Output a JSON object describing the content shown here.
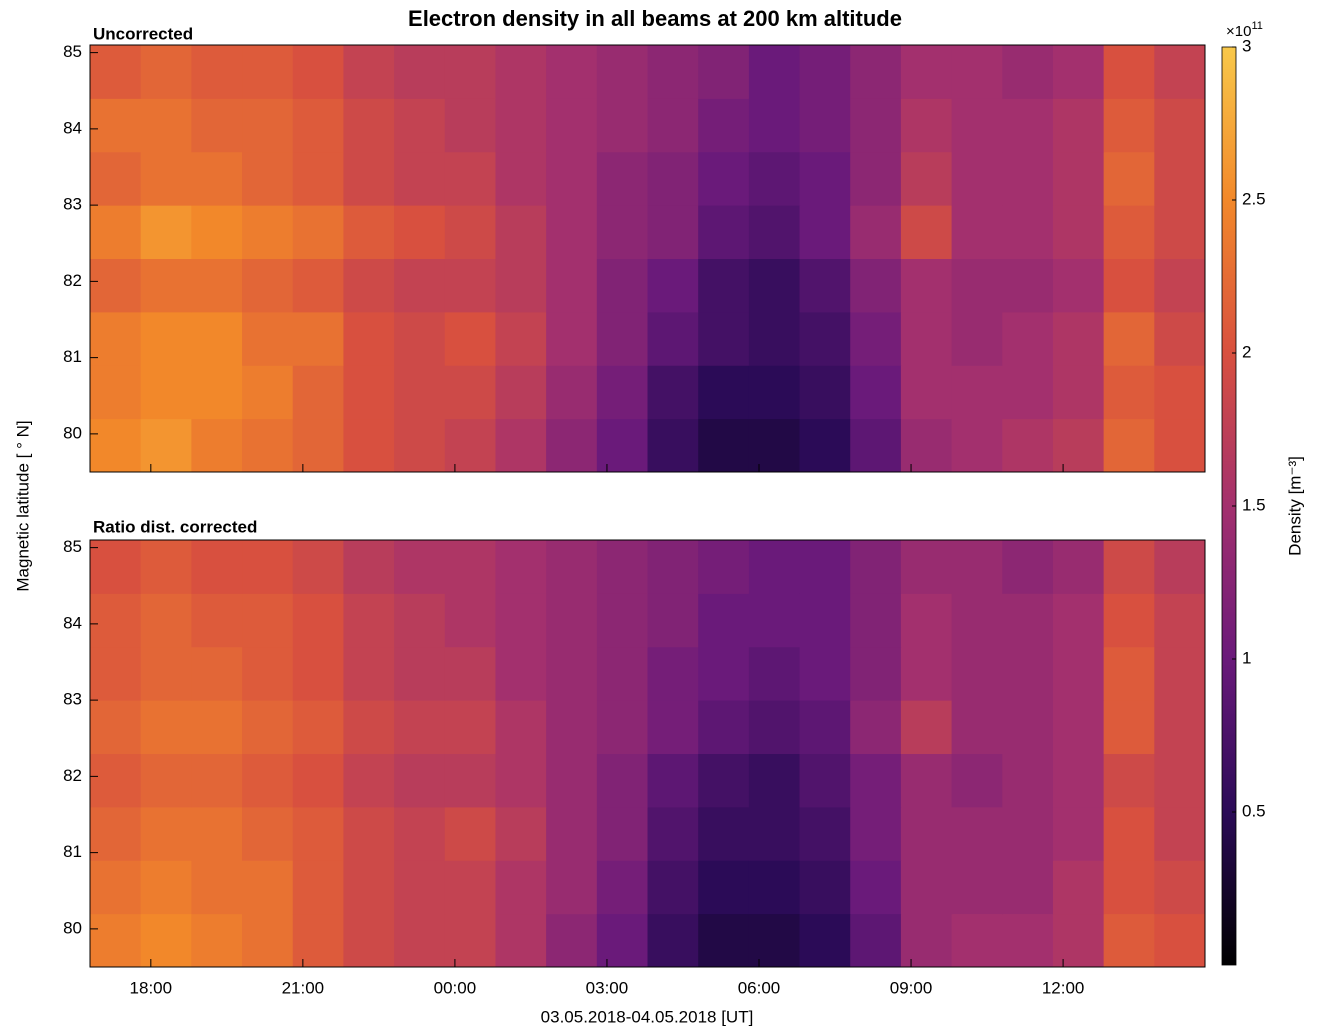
{
  "chart_data": {
    "type": "heatmap",
    "title": "Electron density in all beams at 200 km altitude",
    "y_label": "Magnetic latitude [ ° N]",
    "x_label": "03.05.2018-04.05.2018 [UT]",
    "colorbar_label": "Density [m⁻³]",
    "colorbar_base": "×10",
    "colorbar_exponent": "11",
    "clim": [
      0,
      3
    ],
    "cticks": [
      0.5,
      1,
      1.5,
      2,
      2.5,
      3
    ],
    "colormap": [
      "#000000",
      "#2b0b57",
      "#6a1a7a",
      "#a3306e",
      "#d8503f",
      "#f2882a",
      "#f8c84a"
    ],
    "xlim": [
      16.8,
      38.8
    ],
    "xticks": [
      {
        "value": 18,
        "label": "18:00"
      },
      {
        "value": 21,
        "label": "21:00"
      },
      {
        "value": 24,
        "label": "00:00"
      },
      {
        "value": 27,
        "label": "03:00"
      },
      {
        "value": 30,
        "label": "06:00"
      },
      {
        "value": 33,
        "label": "09:00"
      },
      {
        "value": 36,
        "label": "12:00"
      }
    ],
    "x_edges": [
      16.8,
      17.8,
      18.8,
      19.8,
      20.8,
      21.8,
      22.8,
      23.8,
      24.8,
      25.8,
      26.8,
      27.8,
      28.8,
      29.8,
      30.8,
      31.8,
      32.8,
      33.8,
      34.8,
      35.8,
      36.8,
      37.8,
      38.8
    ],
    "ylim": [
      79.5,
      85.1
    ],
    "yticks": [
      80,
      81,
      82,
      83,
      84,
      85
    ],
    "y_edges": [
      79.5,
      80.2,
      80.9,
      81.6,
      82.3,
      83.0,
      83.7,
      84.4,
      85.1
    ],
    "panels": [
      {
        "subtitle": "Uncorrected",
        "values": [
          [
            2.5,
            2.6,
            2.4,
            2.3,
            2.2,
            2.0,
            1.9,
            1.8,
            1.6,
            1.3,
            1.0,
            0.6,
            0.4,
            0.4,
            0.5,
            0.9,
            1.4,
            1.5,
            1.6,
            1.7,
            2.2,
            2.0
          ],
          [
            2.4,
            2.5,
            2.5,
            2.4,
            2.2,
            2.0,
            1.9,
            1.9,
            1.7,
            1.4,
            1.1,
            0.7,
            0.5,
            0.5,
            0.6,
            1.0,
            1.5,
            1.5,
            1.5,
            1.6,
            2.1,
            2.0
          ],
          [
            2.4,
            2.5,
            2.5,
            2.3,
            2.3,
            2.0,
            1.9,
            2.0,
            1.8,
            1.5,
            1.2,
            0.9,
            0.7,
            0.6,
            0.7,
            1.1,
            1.5,
            1.4,
            1.5,
            1.6,
            2.2,
            1.9
          ],
          [
            2.2,
            2.3,
            2.3,
            2.2,
            2.1,
            1.9,
            1.8,
            1.8,
            1.7,
            1.5,
            1.2,
            1.0,
            0.7,
            0.6,
            0.8,
            1.2,
            1.5,
            1.4,
            1.4,
            1.5,
            2.0,
            1.8
          ],
          [
            2.4,
            2.6,
            2.5,
            2.4,
            2.3,
            2.1,
            2.0,
            1.9,
            1.7,
            1.5,
            1.3,
            1.2,
            0.9,
            0.8,
            1.0,
            1.4,
            1.9,
            1.5,
            1.5,
            1.6,
            2.1,
            1.9
          ],
          [
            2.2,
            2.3,
            2.3,
            2.2,
            2.1,
            1.9,
            1.8,
            1.8,
            1.6,
            1.5,
            1.3,
            1.2,
            1.0,
            0.9,
            1.0,
            1.3,
            1.7,
            1.5,
            1.5,
            1.6,
            2.2,
            1.9
          ],
          [
            2.3,
            2.3,
            2.2,
            2.2,
            2.1,
            1.9,
            1.8,
            1.7,
            1.6,
            1.5,
            1.4,
            1.3,
            1.1,
            1.0,
            1.1,
            1.3,
            1.6,
            1.5,
            1.5,
            1.6,
            2.1,
            1.9
          ],
          [
            2.1,
            2.2,
            2.1,
            2.1,
            2.0,
            1.8,
            1.7,
            1.7,
            1.6,
            1.5,
            1.4,
            1.3,
            1.2,
            1.0,
            1.1,
            1.3,
            1.5,
            1.5,
            1.4,
            1.5,
            2.0,
            1.8
          ]
        ]
      },
      {
        "subtitle": "Ratio dist. corrected",
        "values": [
          [
            2.4,
            2.5,
            2.4,
            2.3,
            2.1,
            1.9,
            1.8,
            1.8,
            1.6,
            1.3,
            1.0,
            0.6,
            0.4,
            0.4,
            0.5,
            0.9,
            1.4,
            1.5,
            1.5,
            1.6,
            2.1,
            2.0
          ],
          [
            2.3,
            2.4,
            2.3,
            2.3,
            2.1,
            1.9,
            1.8,
            1.8,
            1.6,
            1.4,
            1.1,
            0.7,
            0.5,
            0.5,
            0.6,
            1.0,
            1.4,
            1.4,
            1.4,
            1.6,
            2.0,
            1.9
          ],
          [
            2.2,
            2.3,
            2.3,
            2.2,
            2.1,
            1.9,
            1.8,
            1.9,
            1.7,
            1.4,
            1.2,
            0.8,
            0.6,
            0.6,
            0.7,
            1.1,
            1.4,
            1.4,
            1.4,
            1.5,
            2.0,
            1.8
          ],
          [
            2.1,
            2.2,
            2.2,
            2.1,
            2.0,
            1.8,
            1.7,
            1.7,
            1.6,
            1.4,
            1.2,
            0.9,
            0.7,
            0.6,
            0.8,
            1.1,
            1.4,
            1.3,
            1.4,
            1.5,
            1.9,
            1.8
          ],
          [
            2.2,
            2.3,
            2.3,
            2.2,
            2.1,
            1.9,
            1.8,
            1.8,
            1.6,
            1.4,
            1.3,
            1.1,
            0.9,
            0.8,
            0.9,
            1.3,
            1.7,
            1.4,
            1.4,
            1.5,
            2.1,
            1.8
          ],
          [
            2.1,
            2.2,
            2.2,
            2.1,
            2.0,
            1.8,
            1.7,
            1.7,
            1.5,
            1.4,
            1.3,
            1.1,
            1.0,
            0.9,
            1.0,
            1.2,
            1.5,
            1.4,
            1.4,
            1.5,
            2.1,
            1.8
          ],
          [
            2.1,
            2.2,
            2.1,
            2.1,
            2.0,
            1.8,
            1.7,
            1.6,
            1.5,
            1.4,
            1.3,
            1.2,
            1.0,
            1.0,
            1.0,
            1.2,
            1.5,
            1.4,
            1.4,
            1.5,
            2.0,
            1.8
          ],
          [
            2.0,
            2.1,
            2.0,
            2.0,
            1.9,
            1.7,
            1.6,
            1.6,
            1.5,
            1.4,
            1.3,
            1.2,
            1.1,
            1.0,
            1.0,
            1.2,
            1.4,
            1.4,
            1.3,
            1.4,
            1.9,
            1.7
          ]
        ]
      }
    ]
  }
}
